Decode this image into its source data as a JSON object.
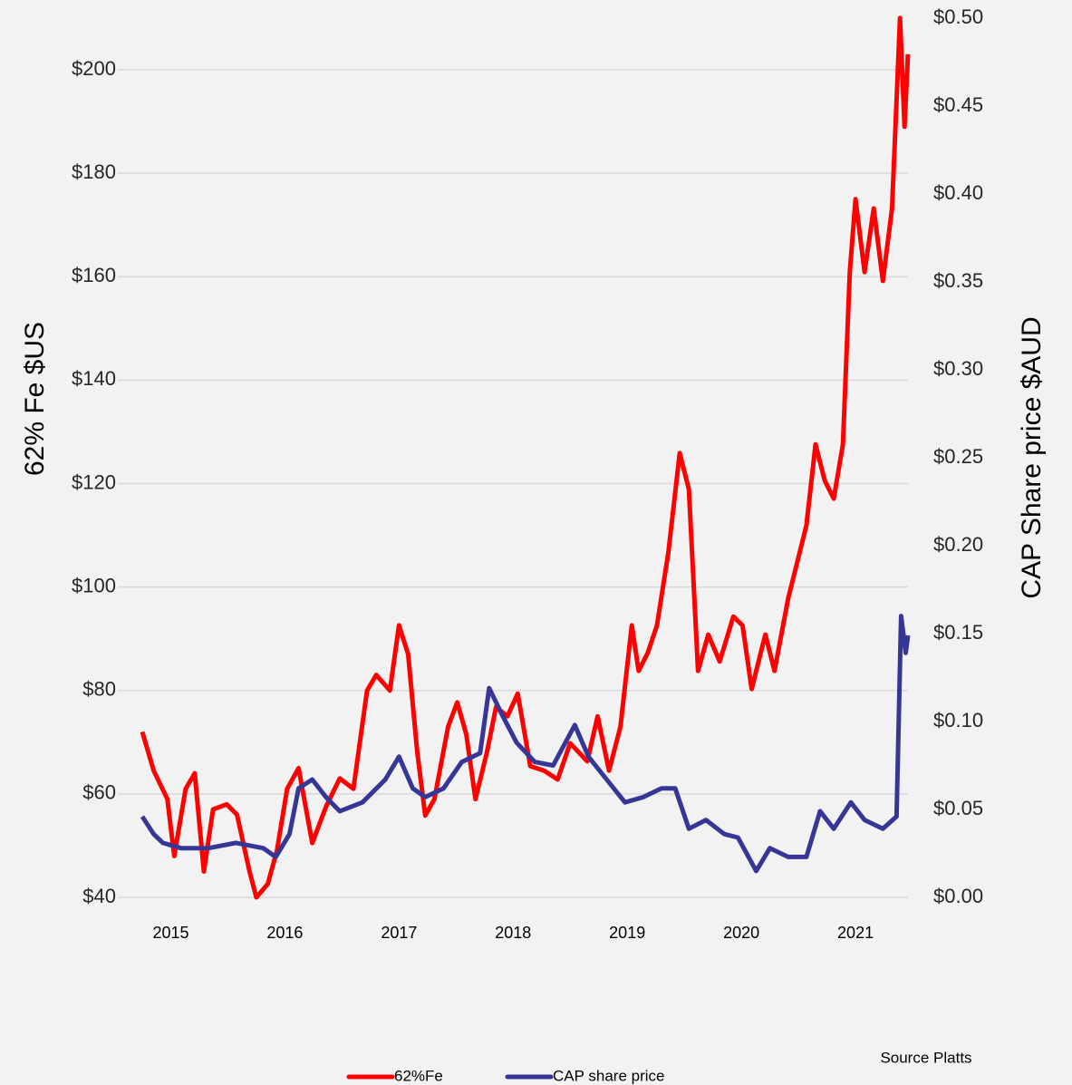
{
  "chart_data": {
    "type": "line",
    "ylabel": "62% Fe $US",
    "y2label": "CAP Share price $AUD",
    "annotation": "Source Platts",
    "xlim": [
      2014.75,
      2021.46
    ],
    "xticks": [
      2015,
      2016,
      2017,
      2018,
      2019,
      2020,
      2021
    ],
    "ylim": [
      40,
      210
    ],
    "yticks": [
      {
        "value": 40,
        "label": "$40"
      },
      {
        "value": 60,
        "label": "$60"
      },
      {
        "value": 80,
        "label": "$80"
      },
      {
        "value": 100,
        "label": "$100"
      },
      {
        "value": 120,
        "label": "$120"
      },
      {
        "value": 140,
        "label": "$140"
      },
      {
        "value": 160,
        "label": "$160"
      },
      {
        "value": 180,
        "label": "$180"
      },
      {
        "value": 200,
        "label": "$200"
      }
    ],
    "y2lim": [
      0,
      0.5
    ],
    "y2ticks": [
      {
        "value": 0,
        "label": "$0.00"
      },
      {
        "value": 0.05,
        "label": "$0.05"
      },
      {
        "value": 0.1,
        "label": "$0.10"
      },
      {
        "value": 0.15,
        "label": "$0.15"
      },
      {
        "value": 0.2,
        "label": "$0.20"
      },
      {
        "value": 0.25,
        "label": "$0.25"
      },
      {
        "value": 0.3,
        "label": "$0.30"
      },
      {
        "value": 0.35,
        "label": "$0.35"
      },
      {
        "value": 0.4,
        "label": "$0.40"
      },
      {
        "value": 0.45,
        "label": "$0.45"
      },
      {
        "value": 0.5,
        "label": "$0.50"
      }
    ],
    "grid": true,
    "legend": "bottom",
    "series": [
      {
        "name": "62%Fe",
        "color": "#ff0000",
        "x": [
          2014.75,
          2014.85,
          2014.97,
          2015.03,
          2015.13,
          2015.21,
          2015.29,
          2015.37,
          2015.49,
          2015.58,
          2015.69,
          2015.75,
          2015.85,
          2015.93,
          2016.02,
          2016.12,
          2016.24,
          2016.36,
          2016.48,
          2016.6,
          2016.72,
          2016.8,
          2016.92,
          2017.0,
          2017.08,
          2017.16,
          2017.23,
          2017.31,
          2017.43,
          2017.51,
          2017.59,
          2017.67,
          2017.77,
          2017.85,
          2017.95,
          2018.04,
          2018.15,
          2018.27,
          2018.39,
          2018.5,
          2018.65,
          2018.74,
          2018.84,
          2018.94,
          2019.04,
          2019.1,
          2019.18,
          2019.26,
          2019.36,
          2019.46,
          2019.54,
          2019.62,
          2019.71,
          2019.81,
          2019.93,
          2020.01,
          2020.09,
          2020.21,
          2020.29,
          2020.41,
          2020.49,
          2020.57,
          2020.65,
          2020.73,
          2020.81,
          2020.89,
          2020.95,
          2021.0,
          2021.08,
          2021.16,
          2021.24,
          2021.32,
          2021.39,
          2021.43,
          2021.46
        ],
        "values": [
          72,
          64.5,
          59,
          48,
          61,
          64,
          45,
          57,
          58,
          56,
          45,
          40,
          42.6,
          49,
          61,
          65,
          50.5,
          57.5,
          63,
          61,
          80,
          83,
          80,
          92.6,
          87,
          68,
          55.8,
          59,
          73,
          77.7,
          71.5,
          59,
          68,
          76.8,
          75,
          79.4,
          65.4,
          64.5,
          62.8,
          69.8,
          66.3,
          75,
          64.5,
          73,
          92.6,
          83.8,
          87.3,
          92.6,
          106.6,
          125.9,
          118.9,
          83.8,
          90.8,
          85.6,
          94.3,
          92.6,
          80.3,
          90.8,
          83.8,
          97.8,
          104.8,
          111.9,
          127.6,
          120.6,
          117.1,
          127.6,
          160.9,
          175,
          160.9,
          173.2,
          159.2,
          173.2,
          210,
          189,
          203
        ]
      },
      {
        "name": "CAP share price",
        "color": "#363696",
        "axis": "y2",
        "x": [
          2014.75,
          2014.85,
          2014.93,
          2015.09,
          2015.33,
          2015.57,
          2015.81,
          2015.92,
          2016.04,
          2016.12,
          2016.24,
          2016.36,
          2016.48,
          2016.68,
          2016.88,
          2017.0,
          2017.12,
          2017.23,
          2017.39,
          2017.55,
          2017.71,
          2017.79,
          2017.91,
          2018.03,
          2018.19,
          2018.35,
          2018.54,
          2018.66,
          2018.82,
          2018.98,
          2019.14,
          2019.3,
          2019.42,
          2019.54,
          2019.69,
          2019.85,
          2019.97,
          2020.13,
          2020.25,
          2020.41,
          2020.57,
          2020.69,
          2020.81,
          2020.96,
          2021.08,
          2021.24,
          2021.36,
          2021.4,
          2021.44,
          2021.46
        ],
        "values": [
          0.046,
          0.036,
          0.031,
          0.028,
          0.028,
          0.031,
          0.028,
          0.023,
          0.036,
          0.062,
          0.067,
          0.057,
          0.049,
          0.054,
          0.067,
          0.08,
          0.062,
          0.057,
          0.062,
          0.077,
          0.082,
          0.119,
          0.103,
          0.088,
          0.077,
          0.075,
          0.098,
          0.08,
          0.067,
          0.054,
          0.057,
          0.062,
          0.062,
          0.039,
          0.044,
          0.036,
          0.034,
          0.015,
          0.028,
          0.023,
          0.023,
          0.049,
          0.039,
          0.054,
          0.044,
          0.039,
          0.046,
          0.16,
          0.139,
          0.149
        ]
      }
    ]
  }
}
